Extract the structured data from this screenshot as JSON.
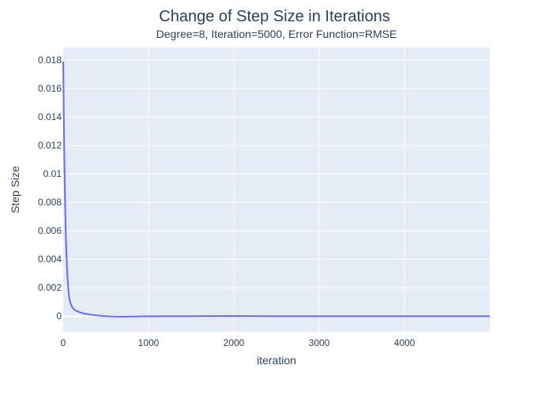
{
  "chart_data": {
    "type": "line",
    "title": "Change of Step Size in Iterations",
    "subtitle": "Degree=8, Iteration=5000, Error Function=RMSE",
    "xlabel": "iteration",
    "ylabel": "Step Size",
    "xlim": [
      0,
      5000
    ],
    "ylim": [
      -0.0011,
      0.0189
    ],
    "x_ticks": [
      0,
      1000,
      2000,
      3000,
      4000
    ],
    "y_ticks": [
      0,
      0.002,
      0.004,
      0.006,
      0.008,
      0.01,
      0.012,
      0.014,
      0.016,
      0.018
    ],
    "x_tick_labels": [
      "0",
      "1000",
      "2000",
      "3000",
      "4000"
    ],
    "y_tick_labels": [
      "0",
      "0.002",
      "0.004",
      "0.006",
      "0.008",
      "0.01",
      "0.012",
      "0.014",
      "0.016",
      "0.018"
    ],
    "grid": true,
    "colors": {
      "line": "#636efa",
      "plot_bg": "#e5ecf6",
      "grid": "#ffffff",
      "text": "#2a3f5f"
    },
    "series": [
      {
        "x": [
          0,
          10,
          20,
          30,
          40,
          50,
          60,
          70,
          80,
          100,
          120,
          150,
          200,
          250,
          300,
          400,
          500,
          600,
          700,
          800,
          900,
          1000,
          1200,
          1500,
          2000,
          2500,
          3000,
          3500,
          4000,
          4500,
          5000
        ],
        "values": [
          0.0179,
          0.0125,
          0.0085,
          0.0058,
          0.004,
          0.0028,
          0.0019,
          0.0013,
          0.001,
          0.00068,
          0.00052,
          0.00038,
          0.00026,
          0.00018,
          0.00012,
          5e-05,
          0.0,
          -3e-05,
          -4e-05,
          -3e-05,
          -2e-05,
          -1e-05,
          0.0,
          0.0,
          1e-05,
          0.0,
          0.0,
          0.0,
          0.0,
          0.0,
          0.0
        ]
      }
    ]
  }
}
